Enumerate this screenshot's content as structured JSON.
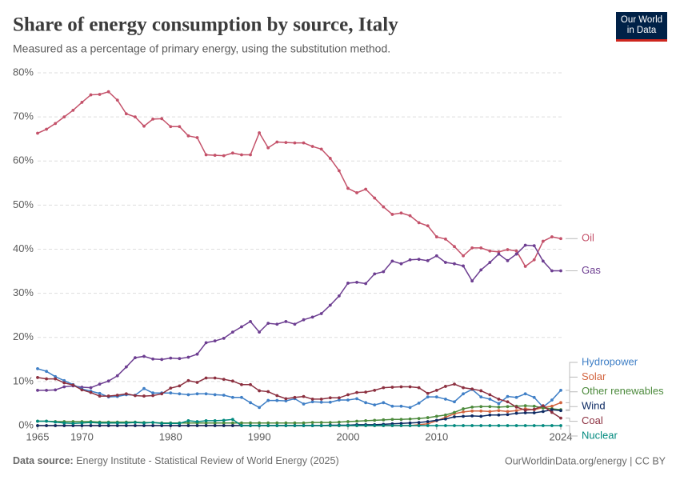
{
  "header": {
    "logo": "Our World in Data"
  },
  "chart_data": {
    "type": "line",
    "title": "Share of energy consumption by source, Italy",
    "subtitle": "Measured as a percentage of primary energy, using the substitution method.",
    "source_label": "Data source:",
    "source": "Energy Institute - Statistical Review of World Energy (2025)",
    "credit": "OurWorldinData.org/energy | CC BY",
    "x": [
      1965,
      1966,
      1967,
      1968,
      1969,
      1970,
      1971,
      1972,
      1973,
      1974,
      1975,
      1976,
      1977,
      1978,
      1979,
      1980,
      1981,
      1982,
      1983,
      1984,
      1985,
      1986,
      1987,
      1988,
      1989,
      1990,
      1991,
      1992,
      1993,
      1994,
      1995,
      1996,
      1997,
      1998,
      1999,
      2000,
      2001,
      2002,
      2003,
      2004,
      2005,
      2006,
      2007,
      2008,
      2009,
      2010,
      2011,
      2012,
      2013,
      2014,
      2015,
      2016,
      2017,
      2018,
      2019,
      2020,
      2021,
      2022,
      2023,
      2024
    ],
    "xlim": [
      1965,
      2024
    ],
    "xticks": [
      1965,
      1970,
      1980,
      1990,
      2000,
      2010,
      2024
    ],
    "ylim": [
      0,
      80
    ],
    "yticks": [
      {
        "value": 0,
        "label": "0%"
      },
      {
        "value": 10,
        "label": "10%"
      },
      {
        "value": 20,
        "label": "20%"
      },
      {
        "value": 30,
        "label": "30%"
      },
      {
        "value": 40,
        "label": "40%"
      },
      {
        "value": 50,
        "label": "50%"
      },
      {
        "value": 60,
        "label": "60%"
      },
      {
        "value": 70,
        "label": "70%"
      },
      {
        "value": 80,
        "label": "80%"
      }
    ],
    "grid": true,
    "series": [
      {
        "name": "Oil",
        "color": "#c4526a",
        "values": [
          66.3,
          67.2,
          68.5,
          70,
          71.5,
          73.3,
          75,
          75.1,
          75.7,
          73.8,
          70.7,
          70,
          67.9,
          69.5,
          69.6,
          67.8,
          67.8,
          65.7,
          65.3,
          61.4,
          61.3,
          61.2,
          61.8,
          61.4,
          61.4,
          66.4,
          63,
          64.3,
          64.2,
          64.1,
          64.1,
          63.3,
          62.7,
          60.6,
          57.8,
          53.8,
          52.8,
          53.6,
          51.6,
          49.6,
          47.9,
          48.2,
          47.6,
          46,
          45.3,
          42.8,
          42.3,
          40.6,
          38.5,
          40.3,
          40.3,
          39.6,
          39.4,
          39.9,
          39.6,
          36.1,
          37.6,
          41.8,
          42.8,
          42.4
        ]
      },
      {
        "name": "Gas",
        "color": "#6d3e91",
        "values": [
          8,
          8,
          8.1,
          8.8,
          9,
          8.7,
          8.6,
          9.4,
          10.1,
          11.3,
          13.3,
          15.4,
          15.7,
          15.1,
          15,
          15.3,
          15.2,
          15.5,
          16.2,
          18.8,
          19.2,
          19.8,
          21.2,
          22.4,
          23.6,
          21.2,
          23.2,
          23,
          23.6,
          23,
          24,
          24.6,
          25.4,
          27.3,
          29.4,
          32.3,
          32.5,
          32.2,
          34.4,
          34.9,
          37.3,
          36.7,
          37.6,
          37.7,
          37.4,
          38.5,
          37,
          36.7,
          36.2,
          32.8,
          35.3,
          37,
          38.9,
          37.4,
          38.9,
          40.9,
          40.8,
          37.3,
          35.1,
          35.1
        ]
      },
      {
        "name": "Hydropower",
        "color": "#3f7fc6",
        "values": [
          12.9,
          12.3,
          11.1,
          10.2,
          9.3,
          8.3,
          7.8,
          7.3,
          6.5,
          6.6,
          7,
          6.9,
          8.4,
          7.4,
          7.4,
          7.4,
          7.2,
          7,
          7.2,
          7.2,
          7,
          6.9,
          6.4,
          6.4,
          5.2,
          4.1,
          5.7,
          5.7,
          5.6,
          6.1,
          4.9,
          5.4,
          5.3,
          5.3,
          5.8,
          5.8,
          6.1,
          5.2,
          4.7,
          5.2,
          4.4,
          4.4,
          4.1,
          5.1,
          6.5,
          6.5,
          6,
          5.4,
          7.2,
          8.2,
          6.5,
          6,
          5,
          6.6,
          6.4,
          7.2,
          6.4,
          4.2,
          5.8,
          8
        ]
      },
      {
        "name": "Solar",
        "color": "#d2643f",
        "values": [
          0,
          0,
          0,
          0,
          0,
          0,
          0,
          0,
          0,
          0,
          0,
          0,
          0,
          0,
          0,
          0,
          0,
          0,
          0,
          0,
          0,
          0,
          0,
          0,
          0,
          0,
          0,
          0,
          0,
          0,
          0,
          0,
          0,
          0,
          0,
          0,
          0,
          0,
          0,
          0,
          0,
          0,
          0,
          0.2,
          0.4,
          1.1,
          1.9,
          2.7,
          3.1,
          3.3,
          3.3,
          3.2,
          3.4,
          3.2,
          3.4,
          3.8,
          3.6,
          4.1,
          4.4,
          5.2
        ]
      },
      {
        "name": "Other renewables",
        "color": "#4c8a3c",
        "values": [
          1,
          1,
          0.9,
          0.9,
          0.9,
          0.9,
          0.9,
          0.8,
          0.8,
          0.8,
          0.8,
          0.8,
          0.7,
          0.7,
          0.6,
          0.6,
          0.6,
          0.6,
          0.6,
          0.6,
          0.6,
          0.6,
          0.6,
          0.6,
          0.6,
          0.6,
          0.6,
          0.6,
          0.6,
          0.6,
          0.6,
          0.7,
          0.7,
          0.7,
          0.8,
          0.9,
          1,
          1.1,
          1.2,
          1.3,
          1.4,
          1.4,
          1.5,
          1.6,
          1.8,
          2.1,
          2.4,
          3,
          3.8,
          4.2,
          4.3,
          4.3,
          4.2,
          4.3,
          4.4,
          4.5,
          4.4,
          4,
          3.8,
          3.6
        ]
      },
      {
        "name": "Wind",
        "color": "#0d2a63",
        "values": [
          0,
          0,
          0,
          0,
          0,
          0,
          0,
          0,
          0,
          0,
          0,
          0,
          0,
          0,
          0,
          0,
          0,
          0,
          0,
          0,
          0,
          0,
          0,
          0,
          0,
          0,
          0,
          0,
          0,
          0,
          0,
          0,
          0,
          0.1,
          0.1,
          0.1,
          0.2,
          0.2,
          0.2,
          0.3,
          0.4,
          0.5,
          0.6,
          0.7,
          0.9,
          1.2,
          1.5,
          2,
          2.1,
          2.2,
          2.1,
          2.4,
          2.4,
          2.5,
          2.8,
          2.9,
          2.9,
          3.2,
          3.6,
          3.4
        ]
      },
      {
        "name": "Coal",
        "color": "#8c3040",
        "values": [
          10.9,
          10.6,
          10.6,
          9.7,
          9.2,
          8.1,
          7.5,
          6.7,
          6.7,
          6.9,
          7.2,
          6.8,
          6.7,
          6.8,
          7.2,
          8.5,
          9,
          10.2,
          9.8,
          10.8,
          10.8,
          10.5,
          10.1,
          9.3,
          9.3,
          7.9,
          7.7,
          6.8,
          6.1,
          6.4,
          6.6,
          6,
          6,
          6.3,
          6.3,
          7,
          7.5,
          7.6,
          8,
          8.6,
          8.7,
          8.8,
          8.8,
          8.6,
          7.3,
          8,
          8.9,
          9.4,
          8.6,
          8.3,
          7.9,
          7,
          6,
          5.4,
          4.2,
          3.5,
          3.7,
          4.5,
          3,
          1.7
        ]
      },
      {
        "name": "Nuclear",
        "color": "#00897e",
        "values": [
          1,
          1,
          0.8,
          0.6,
          0.5,
          0.6,
          0.7,
          0.6,
          0.6,
          0.6,
          0.6,
          0.7,
          0.6,
          0.7,
          0.5,
          0.5,
          0.5,
          1.1,
          0.9,
          1.1,
          1.1,
          1.2,
          1.4,
          0,
          0,
          0,
          0,
          0,
          0,
          0,
          0,
          0,
          0,
          0,
          0,
          0,
          0,
          0,
          0,
          0,
          0,
          0,
          0,
          0,
          0,
          0,
          0,
          0,
          0,
          0,
          0,
          0,
          0,
          0,
          0,
          0,
          0,
          0,
          0,
          0
        ]
      }
    ]
  }
}
